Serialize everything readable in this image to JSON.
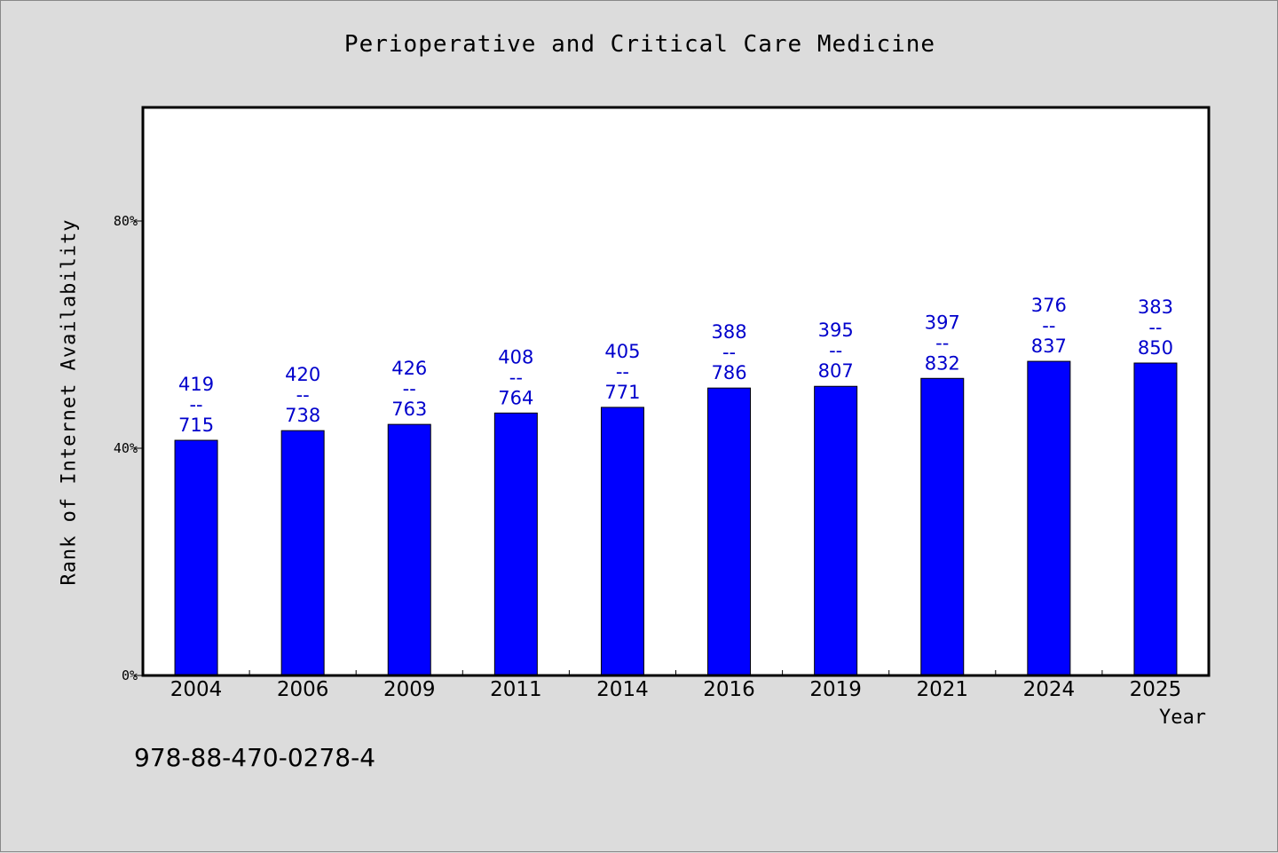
{
  "chart_data": {
    "type": "bar",
    "title": "Perioperative and Critical Care Medicine",
    "xlabel": "Year",
    "ylabel": "Rank of Internet Availability",
    "footer_text": "978-88-470-0278-4",
    "categories": [
      "2004",
      "2006",
      "2009",
      "2011",
      "2014",
      "2016",
      "2019",
      "2021",
      "2024",
      "2025"
    ],
    "series": [
      {
        "values": [
          41.4,
          43.1,
          44.2,
          46.2,
          47.2,
          50.6,
          50.9,
          52.3,
          55.3,
          55.0
        ],
        "annotations": [
          {
            "rank": "419",
            "sep": "--",
            "total": "715"
          },
          {
            "rank": "420",
            "sep": "--",
            "total": "738"
          },
          {
            "rank": "426",
            "sep": "--",
            "total": "763"
          },
          {
            "rank": "408",
            "sep": "--",
            "total": "764"
          },
          {
            "rank": "405",
            "sep": "--",
            "total": "771"
          },
          {
            "rank": "388",
            "sep": "--",
            "total": "786"
          },
          {
            "rank": "395",
            "sep": "--",
            "total": "807"
          },
          {
            "rank": "397",
            "sep": "--",
            "total": "832"
          },
          {
            "rank": "376",
            "sep": "--",
            "total": "837"
          },
          {
            "rank": "383",
            "sep": "--",
            "total": "850"
          }
        ]
      }
    ],
    "ylim": [
      0,
      100
    ],
    "yticks": [
      0,
      40,
      80
    ],
    "ytick_labels": [
      "0%",
      "40%",
      "80%"
    ],
    "grid": false,
    "colors": {
      "bar": "#0000ff",
      "annotation": "#0000cc",
      "plot_background": "#ffffff",
      "page_background": "#dcdcdc"
    }
  }
}
